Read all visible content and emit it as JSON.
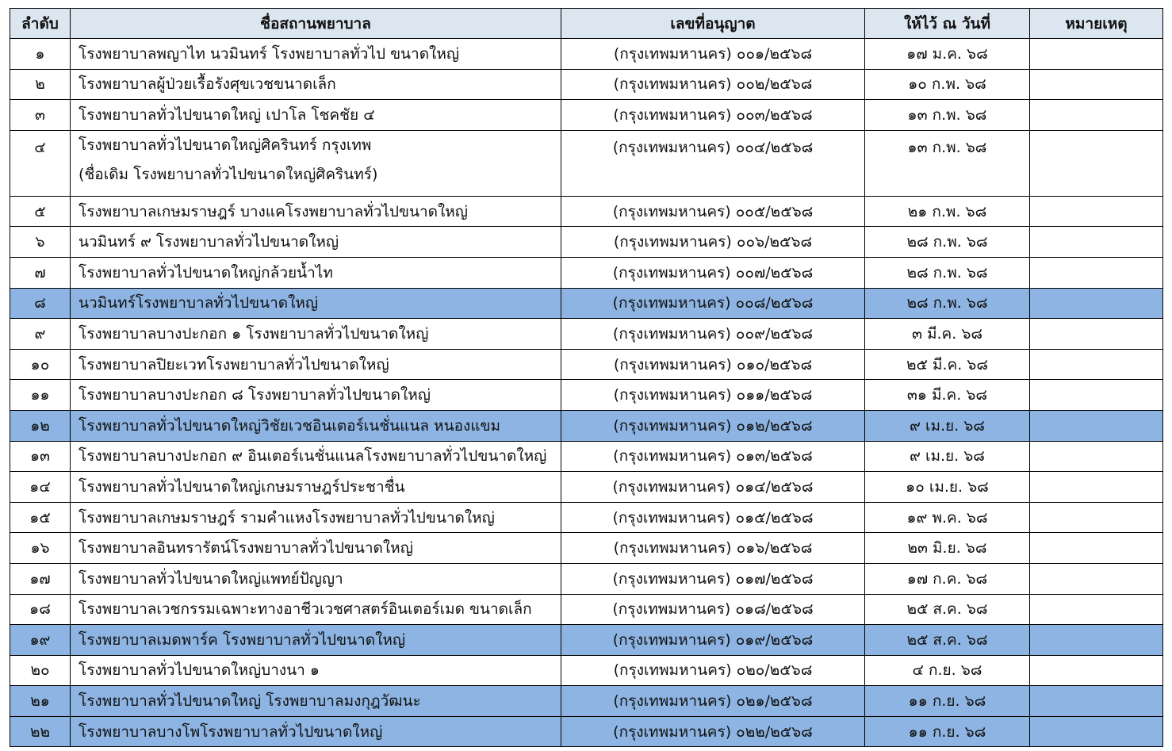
{
  "table": {
    "headers": [
      "ลำดับ",
      "ชื่อสถานพยาบาล",
      "เลขที่อนุญาต",
      "ให้ไว้ ณ วันที่",
      "หมายเหตุ"
    ],
    "highlight_color": "#8db4e2",
    "header_color": "#dce6f1",
    "rows": [
      {
        "no": "๑",
        "name": "โรงพยาบาลพญาไท นวมินทร์ โรงพยาบาลทั่วไป ขนาดใหญ่",
        "license": "(กรุงเทพมหานคร) ๐๐๑/๒๕๖๘",
        "date": "๑๗ ม.ค. ๖๘",
        "note": "",
        "highlighted": false
      },
      {
        "no": "๒",
        "name": "โรงพยาบาลผู้ป่วยเรื้อรังศุขเวชขนาดเล็ก",
        "license": "(กรุงเทพมหานคร) ๐๐๒/๒๕๖๘",
        "date": "๑๐ ก.พ. ๖๘",
        "note": "",
        "highlighted": false
      },
      {
        "no": "๓",
        "name": "โรงพยาบาลทั่วไปขนาดใหญ่ เปาโล โชคชัย ๔",
        "license": "(กรุงเทพมหานคร) ๐๐๓/๒๕๖๘",
        "date": "๑๓ ก.พ. ๖๘",
        "note": "",
        "highlighted": false
      },
      {
        "no": "๔",
        "name": "โรงพยาบาลทั่วไปขนาดใหญ่ศิครินทร์ กรุงเทพ",
        "name2": "(ชื่อเดิม โรงพยาบาลทั่วไปขนาดใหญ่ศิครินทร์)",
        "license": "(กรุงเทพมหานคร) ๐๐๔/๒๕๖๘",
        "date": "๑๓ ก.พ. ๖๘",
        "note": "",
        "highlighted": false
      },
      {
        "no": "๕",
        "name": "โรงพยาบาลเกษมราษฎร์ บางแคโรงพยาบาลทั่วไปขนาดใหญ่",
        "license": "(กรุงเทพมหานคร) ๐๐๕/๒๕๖๘",
        "date": "๒๑ ก.พ. ๖๘",
        "note": "",
        "highlighted": false
      },
      {
        "no": "๖",
        "name": "นวมินทร์ ๙ โรงพยาบาลทั่วไปขนาดใหญ่",
        "license": "(กรุงเทพมหานคร) ๐๐๖/๒๕๖๘",
        "date": "๒๘ ก.พ. ๖๘",
        "note": "",
        "highlighted": false
      },
      {
        "no": "๗",
        "name": "โรงพยาบาลทั่วไปขนาดใหญ่กล้วยน้ำไท",
        "license": "(กรุงเทพมหานคร) ๐๐๗/๒๕๖๘",
        "date": "๒๘ ก.พ. ๖๘",
        "note": "",
        "highlighted": false
      },
      {
        "no": "๘",
        "name": "นวมินทร์โรงพยาบาลทั่วไปขนาดใหญ่",
        "license": "(กรุงเทพมหานคร) ๐๐๘/๒๕๖๘",
        "date": "๒๘ ก.พ. ๖๘",
        "note": "",
        "highlighted": true
      },
      {
        "no": "๙",
        "name": "โรงพยาบาลบางปะกอก ๑ โรงพยาบาลทั่วไปขนาดใหญ่",
        "license": "(กรุงเทพมหานคร) ๐๐๙/๒๕๖๘",
        "date": "๓ มี.ค. ๖๘",
        "note": "",
        "highlighted": false
      },
      {
        "no": "๑๐",
        "name": "โรงพยาบาลปิยะเวทโรงพยาบาลทั่วไปขนาดใหญ่",
        "license": "(กรุงเทพมหานคร) ๐๑๐/๒๕๖๘",
        "date": "๒๕ มี.ค. ๖๘",
        "note": "",
        "highlighted": false
      },
      {
        "no": "๑๑",
        "name": "โรงพยาบาลบางปะกอก ๘ โรงพยาบาลทั่วไปขนาดใหญ่",
        "license": "(กรุงเทพมหานคร) ๐๑๑/๒๕๖๘",
        "date": "๓๑ มี.ค. ๖๘",
        "note": "",
        "highlighted": false
      },
      {
        "no": "๑๒",
        "name": "โรงพยาบาลทั่วไปขนาดใหญ่วิชัยเวชอินเตอร์เนชั่นแนล หนองแขม",
        "license": "(กรุงเทพมหานคร) ๐๑๒/๒๕๖๘",
        "date": "๙ เม.ย. ๖๘",
        "note": "",
        "highlighted": true
      },
      {
        "no": "๑๓",
        "name": "โรงพยาบาลบางปะกอก ๙ อินเตอร์เนชั่นแนลโรงพยาบาลทั่วไปขนาดใหญ่",
        "license": "(กรุงเทพมหานคร) ๐๑๓/๒๕๖๘",
        "date": "๙ เม.ย. ๖๘",
        "note": "",
        "highlighted": false
      },
      {
        "no": "๑๔",
        "name": "โรงพยาบาลทั่วไปขนาดใหญ่เกษมราษฎร์ประชาชื่น",
        "license": "(กรุงเทพมหานคร) ๐๑๔/๒๕๖๘",
        "date": "๑๐ เม.ย. ๖๘",
        "note": "",
        "highlighted": false
      },
      {
        "no": "๑๕",
        "name": "โรงพยาบาลเกษมราษฎร์ รามคำแหงโรงพยาบาลทั่วไปขนาดใหญ่",
        "license": "(กรุงเทพมหานคร) ๐๑๕/๒๕๖๘",
        "date": "๑๙ พ.ค. ๖๘",
        "note": "",
        "highlighted": false
      },
      {
        "no": "๑๖",
        "name": "โรงพยาบาลอินทรารัตน์โรงพยาบาลทั่วไปขนาดใหญ่",
        "license": "(กรุงเทพมหานคร) ๐๑๖/๒๕๖๘",
        "date": "๒๓ มิ.ย. ๖๘",
        "note": "",
        "highlighted": false
      },
      {
        "no": "๑๗",
        "name": "โรงพยาบาลทั่วไปขนาดใหญ่แพทย์ปัญญา",
        "license": "(กรุงเทพมหานคร) ๐๑๗/๒๕๖๘",
        "date": "๑๗ ก.ค. ๖๘",
        "note": "",
        "highlighted": false
      },
      {
        "no": "๑๘",
        "name": "โรงพยาบาลเวชกรรมเฉพาะทางอาชีวเวชศาสตร์อินเตอร์เมด ขนาดเล็ก",
        "license": "(กรุงเทพมหานคร) ๐๑๘/๒๕๖๘",
        "date": "๒๕ ส.ค. ๖๘",
        "note": "",
        "highlighted": false
      },
      {
        "no": "๑๙",
        "name": "โรงพยาบาลเมดพาร์ค โรงพยาบาลทั่วไปขนาดใหญ่",
        "license": "(กรุงเทพมหานคร) ๐๑๙/๒๕๖๘",
        "date": "๒๕ ส.ค. ๖๘",
        "note": "",
        "highlighted": true
      },
      {
        "no": "๒๐",
        "name": "โรงพยาบาลทั่วไปขนาดใหญ่บางนา ๑",
        "license": "(กรุงเทพมหานคร) ๐๒๐/๒๕๖๘",
        "date": "๔ ก.ย. ๖๘",
        "note": "",
        "highlighted": false
      },
      {
        "no": "๒๑",
        "name": "โรงพยาบาลทั่วไปขนาดใหญ่ โรงพยาบาลมงกุฎวัฒนะ",
        "license": "(กรุงเทพมหานคร) ๐๒๑/๒๕๖๘",
        "date": "๑๑ ก.ย. ๖๘",
        "note": "",
        "highlighted": true
      },
      {
        "no": "๒๒",
        "name": "โรงพยาบาลบางโพโรงพยาบาลทั่วไปขนาดใหญ่",
        "license": "(กรุงเทพมหานคร) ๐๒๒/๒๕๖๘",
        "date": "๑๑ ก.ย. ๖๘",
        "note": "",
        "highlighted": true
      }
    ]
  }
}
